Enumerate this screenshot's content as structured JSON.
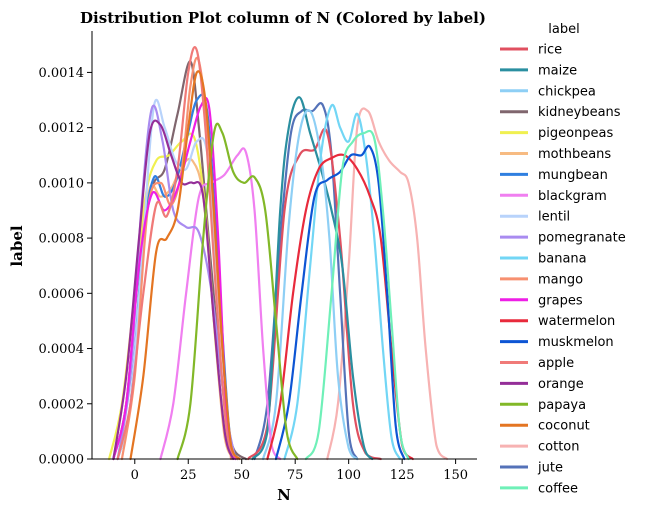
{
  "chart_data": {
    "type": "line",
    "title": "Distribution Plot column of N (Colored by label)",
    "xlabel": "N",
    "ylabel": "label",
    "xlim": [
      -20,
      160
    ],
    "ylim": [
      0,
      0.00155
    ],
    "xticks": [
      0,
      25,
      50,
      75,
      100,
      125,
      150
    ],
    "xtick_labels": [
      "0",
      "25",
      "50",
      "75",
      "100",
      "125",
      "150"
    ],
    "yticks": [
      0,
      0.0002,
      0.0004,
      0.0006,
      0.0008,
      0.001,
      0.0012,
      0.0014
    ],
    "ytick_labels": [
      "0.0000",
      "0.0002",
      "0.0004",
      "0.0006",
      "0.0008",
      "0.0010",
      "0.0012",
      "0.0014"
    ],
    "grid": false,
    "legend": {
      "title": "label",
      "placement": "outside-right"
    },
    "series": [
      {
        "name": "rice",
        "color": "#e05060",
        "x": [
          53,
          62,
          70,
          77,
          84,
          90,
          96,
          102,
          108,
          115
        ],
        "y": [
          0,
          0.00012,
          0.0009,
          0.0011,
          0.00112,
          0.00118,
          0.0008,
          0.0002,
          2e-05,
          0
        ],
        "order": 2
      },
      {
        "name": "maize",
        "color": "#2a8fa0",
        "x": [
          55,
          62,
          68,
          72,
          77,
          82,
          87,
          92,
          97,
          102,
          107,
          111
        ],
        "y": [
          0,
          0.0001,
          0.0009,
          0.0012,
          0.00131,
          0.00118,
          0.00105,
          0.0009,
          0.0007,
          0.0003,
          5e-05,
          0
        ],
        "order": 3
      },
      {
        "name": "chickpea",
        "color": "#8ecff5",
        "x": [
          60,
          66,
          72,
          77,
          82,
          87,
          91,
          95,
          100,
          104
        ],
        "y": [
          0,
          0.0002,
          0.00085,
          0.00118,
          0.00126,
          0.0011,
          0.0008,
          0.0003,
          4e-05,
          0
        ],
        "order": 7
      },
      {
        "name": "kidneybeans",
        "color": "#80666e",
        "x": [
          -10,
          -4,
          2,
          8,
          14,
          20,
          26,
          30,
          34,
          38,
          42,
          46,
          52
        ],
        "y": [
          0,
          0.0002,
          0.0007,
          0.00098,
          0.00105,
          0.00125,
          0.00144,
          0.0012,
          0.00085,
          0.0005,
          0.0002,
          4e-05,
          0
        ],
        "order": 4
      },
      {
        "name": "pigeonpeas",
        "color": "#f0f050",
        "x": [
          -12,
          -6,
          0,
          5,
          10,
          16,
          22,
          28,
          33,
          38,
          43,
          48
        ],
        "y": [
          0,
          0.0002,
          0.0006,
          0.00095,
          0.00108,
          0.0011,
          0.00115,
          0.00116,
          0.0009,
          0.0004,
          5e-05,
          0
        ],
        "order": 5
      },
      {
        "name": "mothbeans",
        "color": "#f7bb82",
        "x": [
          -10,
          -4,
          2,
          7,
          12,
          17,
          22,
          27,
          32,
          37,
          42,
          47
        ],
        "y": [
          0,
          0.0002,
          0.0007,
          0.00098,
          0.00095,
          0.00098,
          0.00106,
          0.00108,
          0.00095,
          0.0005,
          8e-05,
          0
        ],
        "order": 6
      },
      {
        "name": "mungbean",
        "color": "#2f7fe0",
        "x": [
          -8,
          -2,
          4,
          9,
          14,
          19,
          24,
          29,
          34,
          39,
          44,
          48
        ],
        "y": [
          0,
          0.0002,
          0.0008,
          0.00102,
          0.00095,
          0.001,
          0.00115,
          0.0013,
          0.00125,
          0.0007,
          0.00012,
          0
        ],
        "order": 8
      },
      {
        "name": "blackgram",
        "color": "#f07ff0",
        "x": [
          12,
          18,
          24,
          30,
          36,
          42,
          48,
          52,
          56,
          60,
          64,
          68
        ],
        "y": [
          0,
          0.0002,
          0.0006,
          0.00095,
          0.001,
          0.00103,
          0.0011,
          0.00111,
          0.0009,
          0.0004,
          5e-05,
          0
        ],
        "order": 9
      },
      {
        "name": "lentil",
        "color": "#b8d3fb",
        "x": [
          -8,
          -2,
          4,
          9,
          14,
          19,
          24,
          29,
          34,
          39,
          44,
          48
        ],
        "y": [
          0,
          0.0002,
          0.0008,
          0.00128,
          0.0012,
          0.00108,
          0.00105,
          0.00115,
          0.0011,
          0.0006,
          0.0001,
          0
        ],
        "order": 10
      },
      {
        "name": "pomegranate",
        "color": "#a98bf0",
        "x": [
          -8,
          -2,
          3,
          8,
          13,
          18,
          24,
          30,
          36,
          42,
          47
        ],
        "y": [
          0,
          0.0003,
          0.0009,
          0.00127,
          0.00115,
          0.0009,
          0.00084,
          0.00082,
          0.0006,
          0.0002,
          0
        ],
        "order": 11
      },
      {
        "name": "banana",
        "color": "#72d6f5",
        "x": [
          70,
          76,
          82,
          87,
          92,
          96,
          100,
          104,
          108,
          112,
          116,
          120,
          124
        ],
        "y": [
          0,
          0.0002,
          0.0007,
          0.0011,
          0.00128,
          0.0012,
          0.00115,
          0.00125,
          0.0011,
          0.0008,
          0.0004,
          8e-05,
          0
        ],
        "order": 12
      },
      {
        "name": "mango",
        "color": "#f79070",
        "x": [
          -6,
          0,
          6,
          12,
          17,
          22,
          26,
          30,
          35,
          40,
          45
        ],
        "y": [
          0,
          0.0003,
          0.0009,
          0.001,
          0.00092,
          0.00105,
          0.00135,
          0.00144,
          0.0011,
          0.0005,
          0
        ],
        "order": 13
      },
      {
        "name": "grapes",
        "color": "#ee1ee6",
        "x": [
          -10,
          -4,
          2,
          8,
          14,
          20,
          26,
          31,
          35,
          39,
          43,
          47
        ],
        "y": [
          0,
          0.0002,
          0.0007,
          0.00096,
          0.0009,
          0.00098,
          0.00115,
          0.00128,
          0.00126,
          0.0008,
          0.00015,
          0
        ],
        "order": 14
      },
      {
        "name": "watermelon",
        "color": "#e82a3c",
        "x": [
          62,
          68,
          74,
          80,
          86,
          92,
          98,
          104,
          110,
          115,
          120,
          125,
          130
        ],
        "y": [
          0,
          0.0002,
          0.0006,
          0.0009,
          0.00105,
          0.00109,
          0.0011,
          0.00105,
          0.00095,
          0.0008,
          0.0004,
          5e-05,
          0
        ],
        "order": 15
      },
      {
        "name": "muskmelon",
        "color": "#0d55d4",
        "x": [
          66,
          72,
          78,
          84,
          90,
          96,
          101,
          106,
          110,
          114,
          118,
          122,
          126
        ],
        "y": [
          0,
          0.0002,
          0.0006,
          0.00095,
          0.00101,
          0.00104,
          0.0011,
          0.0011,
          0.00113,
          0.001,
          0.0006,
          0.00012,
          0
        ],
        "order": 16
      },
      {
        "name": "apple",
        "color": "#f07a78",
        "x": [
          -8,
          -2,
          4,
          10,
          15,
          20,
          25,
          29,
          33,
          38,
          43,
          48
        ],
        "y": [
          0,
          0.0002,
          0.0006,
          0.00092,
          0.00088,
          0.00105,
          0.0014,
          0.00148,
          0.0012,
          0.0006,
          0.0001,
          0
        ],
        "order": 17
      },
      {
        "name": "orange",
        "color": "#942e98",
        "x": [
          -10,
          -4,
          2,
          7,
          12,
          17,
          22,
          27,
          32,
          37,
          42,
          46
        ],
        "y": [
          0,
          0.0003,
          0.0008,
          0.00118,
          0.00121,
          0.0011,
          0.001,
          0.001,
          0.00095,
          0.0005,
          0.0001,
          0
        ],
        "order": 18
      },
      {
        "name": "papaya",
        "color": "#82b828",
        "x": [
          20,
          26,
          32,
          37,
          41,
          46,
          51,
          56,
          61,
          66,
          71,
          76
        ],
        "y": [
          0,
          0.0002,
          0.0008,
          0.00118,
          0.00118,
          0.00104,
          0.001,
          0.00102,
          0.0009,
          0.0005,
          0.0001,
          0
        ],
        "order": 19
      },
      {
        "name": "coconut",
        "color": "#e47522",
        "x": [
          -2,
          4,
          10,
          15,
          20,
          25,
          29,
          33,
          37,
          41,
          45,
          49
        ],
        "y": [
          0,
          0.0003,
          0.00075,
          0.0008,
          0.0009,
          0.0012,
          0.0014,
          0.0013,
          0.0009,
          0.0004,
          5e-05,
          0
        ],
        "order": 20
      },
      {
        "name": "cotton",
        "color": "#f7b2b2",
        "x": [
          90,
          95,
          100,
          104,
          109,
          114,
          119,
          124,
          128,
          132,
          136,
          141,
          146
        ],
        "y": [
          0,
          0.0002,
          0.0007,
          0.0012,
          0.00126,
          0.00115,
          0.00108,
          0.00104,
          0.001,
          0.0008,
          0.0004,
          5e-05,
          0
        ],
        "order": 0
      },
      {
        "name": "jute",
        "color": "#5472b8",
        "x": [
          56,
          62,
          68,
          73,
          78,
          83,
          88,
          92,
          96,
          100,
          104
        ],
        "y": [
          0,
          0.0002,
          0.0008,
          0.00118,
          0.00126,
          0.00126,
          0.00128,
          0.0011,
          0.0006,
          0.0001,
          0
        ],
        "order": 1
      },
      {
        "name": "coffee",
        "color": "#6ff0b8",
        "x": [
          80,
          86,
          92,
          97,
          102,
          107,
          112,
          116,
          120,
          124,
          128
        ],
        "y": [
          0,
          0.0001,
          0.0006,
          0.00105,
          0.00115,
          0.00118,
          0.00116,
          0.0009,
          0.0005,
          0.0001,
          0
        ],
        "order": 21
      }
    ]
  }
}
